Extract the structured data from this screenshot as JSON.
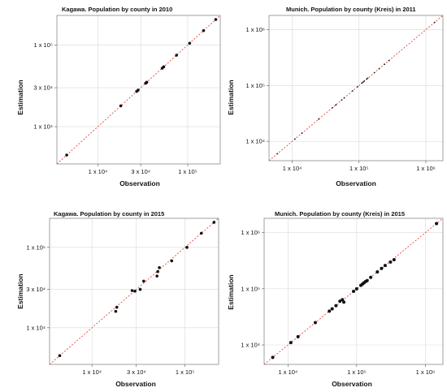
{
  "chart_data": [
    {
      "type": "scatter",
      "title": "Kagawa. Population by county in 2010",
      "xlabel": "Observation",
      "ylabel": "Estimation",
      "xscale": "log",
      "yscale": "log",
      "xlim": [
        3500,
        230000
      ],
      "ylim": [
        3500,
        230000
      ],
      "grid": true,
      "xticks": [
        {
          "value": 10000,
          "label": "1 x 10⁴"
        },
        {
          "value": 30000,
          "label": "3 x 10⁴"
        },
        {
          "value": 100000,
          "label": "1 x 10⁵"
        }
      ],
      "yticks": [
        {
          "value": 10000,
          "label": "1 x 10⁴"
        },
        {
          "value": 30000,
          "label": "3 x 10⁴"
        },
        {
          "value": 100000,
          "label": "1 x 10⁵"
        }
      ],
      "points": [
        {
          "x": 4500,
          "y": 4500
        },
        {
          "x": 18000,
          "y": 18000
        },
        {
          "x": 27000,
          "y": 27000
        },
        {
          "x": 28000,
          "y": 28000
        },
        {
          "x": 34000,
          "y": 34000
        },
        {
          "x": 35000,
          "y": 35000
        },
        {
          "x": 52000,
          "y": 52000
        },
        {
          "x": 54000,
          "y": 54000
        },
        {
          "x": 75000,
          "y": 75000
        },
        {
          "x": 105000,
          "y": 105000
        },
        {
          "x": 150000,
          "y": 150000
        },
        {
          "x": 205000,
          "y": 205000
        }
      ],
      "point_radius": 1.8
    },
    {
      "type": "scatter",
      "title": "Munich. Population by county (Kreis) in 2011",
      "xlabel": "Observation",
      "ylabel": "Estimation",
      "xscale": "log",
      "yscale": "log",
      "xlim": [
        4500,
        1800000
      ],
      "ylim": [
        4500,
        1800000
      ],
      "grid": true,
      "xticks": [
        {
          "value": 10000,
          "label": "1 x 10⁴"
        },
        {
          "value": 100000,
          "label": "1 x 10⁵"
        },
        {
          "value": 1000000,
          "label": "1 x 10⁶"
        }
      ],
      "yticks": [
        {
          "value": 10000,
          "label": "1 x 10⁴"
        },
        {
          "value": 100000,
          "label": "1 x 10⁵"
        },
        {
          "value": 1000000,
          "label": "1 x 10⁶"
        }
      ],
      "points": [
        {
          "x": 6000,
          "y": 6000
        },
        {
          "x": 11000,
          "y": 11000
        },
        {
          "x": 14000,
          "y": 14000
        },
        {
          "x": 25000,
          "y": 25000
        },
        {
          "x": 40000,
          "y": 40000
        },
        {
          "x": 45000,
          "y": 45000
        },
        {
          "x": 55000,
          "y": 55000
        },
        {
          "x": 60000,
          "y": 60000
        },
        {
          "x": 80000,
          "y": 80000
        },
        {
          "x": 95000,
          "y": 95000
        },
        {
          "x": 110000,
          "y": 110000
        },
        {
          "x": 115000,
          "y": 115000
        },
        {
          "x": 120000,
          "y": 120000
        },
        {
          "x": 130000,
          "y": 130000
        },
        {
          "x": 135000,
          "y": 135000
        },
        {
          "x": 170000,
          "y": 170000
        },
        {
          "x": 200000,
          "y": 200000
        },
        {
          "x": 240000,
          "y": 240000
        },
        {
          "x": 280000,
          "y": 280000
        },
        {
          "x": 1350000,
          "y": 1350000
        }
      ],
      "point_radius": 0.9
    },
    {
      "type": "scatter",
      "title": "Kagawa. Population by county in 2015",
      "xlabel": "Observation",
      "ylabel": "Estimation",
      "xscale": "log",
      "yscale": "log",
      "xlim": [
        3500,
        230000
      ],
      "ylim": [
        3500,
        230000
      ],
      "grid": true,
      "xticks": [
        {
          "value": 10000,
          "label": "1 x 10⁴"
        },
        {
          "value": 30000,
          "label": "3 x 10⁴"
        },
        {
          "value": 100000,
          "label": "1 x 10⁵"
        }
      ],
      "yticks": [
        {
          "value": 10000,
          "label": "1 x 10⁴"
        },
        {
          "value": 30000,
          "label": "3 x 10⁴"
        },
        {
          "value": 100000,
          "label": "1 x 10⁵"
        }
      ],
      "points": [
        {
          "x": 4500,
          "y": 4500
        },
        {
          "x": 18000,
          "y": 16000
        },
        {
          "x": 18500,
          "y": 18000
        },
        {
          "x": 27000,
          "y": 29000
        },
        {
          "x": 29000,
          "y": 28500
        },
        {
          "x": 33000,
          "y": 30000
        },
        {
          "x": 36000,
          "y": 38000
        },
        {
          "x": 50000,
          "y": 44000
        },
        {
          "x": 51000,
          "y": 50000
        },
        {
          "x": 53000,
          "y": 56000
        },
        {
          "x": 72000,
          "y": 68000
        },
        {
          "x": 105000,
          "y": 100000
        },
        {
          "x": 150000,
          "y": 150000
        },
        {
          "x": 205000,
          "y": 205000
        }
      ],
      "point_radius": 1.8
    },
    {
      "type": "scatter",
      "title": "Munich. Population by county (Kreis) in 2015",
      "xlabel": "Observation",
      "ylabel": "Estimation",
      "xscale": "log",
      "yscale": "log",
      "xlim": [
        4500,
        1800000
      ],
      "ylim": [
        4500,
        1800000
      ],
      "grid": true,
      "xticks": [
        {
          "value": 10000,
          "label": "1 x 10⁴"
        },
        {
          "value": 100000,
          "label": "1 x 10⁵"
        },
        {
          "value": 1000000,
          "label": "1 x 10⁶"
        }
      ],
      "yticks": [
        {
          "value": 10000,
          "label": "1 x 10⁴"
        },
        {
          "value": 100000,
          "label": "1 x 10⁵"
        },
        {
          "value": 1000000,
          "label": "1 x 10⁶"
        }
      ],
      "points": [
        {
          "x": 6000,
          "y": 6000
        },
        {
          "x": 11000,
          "y": 11000
        },
        {
          "x": 14000,
          "y": 14000
        },
        {
          "x": 25000,
          "y": 25000
        },
        {
          "x": 40000,
          "y": 40000
        },
        {
          "x": 44000,
          "y": 44000
        },
        {
          "x": 50000,
          "y": 50000
        },
        {
          "x": 57000,
          "y": 60000
        },
        {
          "x": 62000,
          "y": 64000
        },
        {
          "x": 65000,
          "y": 58000
        },
        {
          "x": 90000,
          "y": 90000
        },
        {
          "x": 100000,
          "y": 100000
        },
        {
          "x": 115000,
          "y": 115000
        },
        {
          "x": 122000,
          "y": 122000
        },
        {
          "x": 128000,
          "y": 128000
        },
        {
          "x": 135000,
          "y": 135000
        },
        {
          "x": 142000,
          "y": 140000
        },
        {
          "x": 160000,
          "y": 160000
        },
        {
          "x": 200000,
          "y": 200000
        },
        {
          "x": 230000,
          "y": 230000
        },
        {
          "x": 260000,
          "y": 260000
        },
        {
          "x": 310000,
          "y": 300000
        },
        {
          "x": 350000,
          "y": 330000
        },
        {
          "x": 1450000,
          "y": 1450000
        }
      ],
      "point_radius": 2.0
    }
  ]
}
